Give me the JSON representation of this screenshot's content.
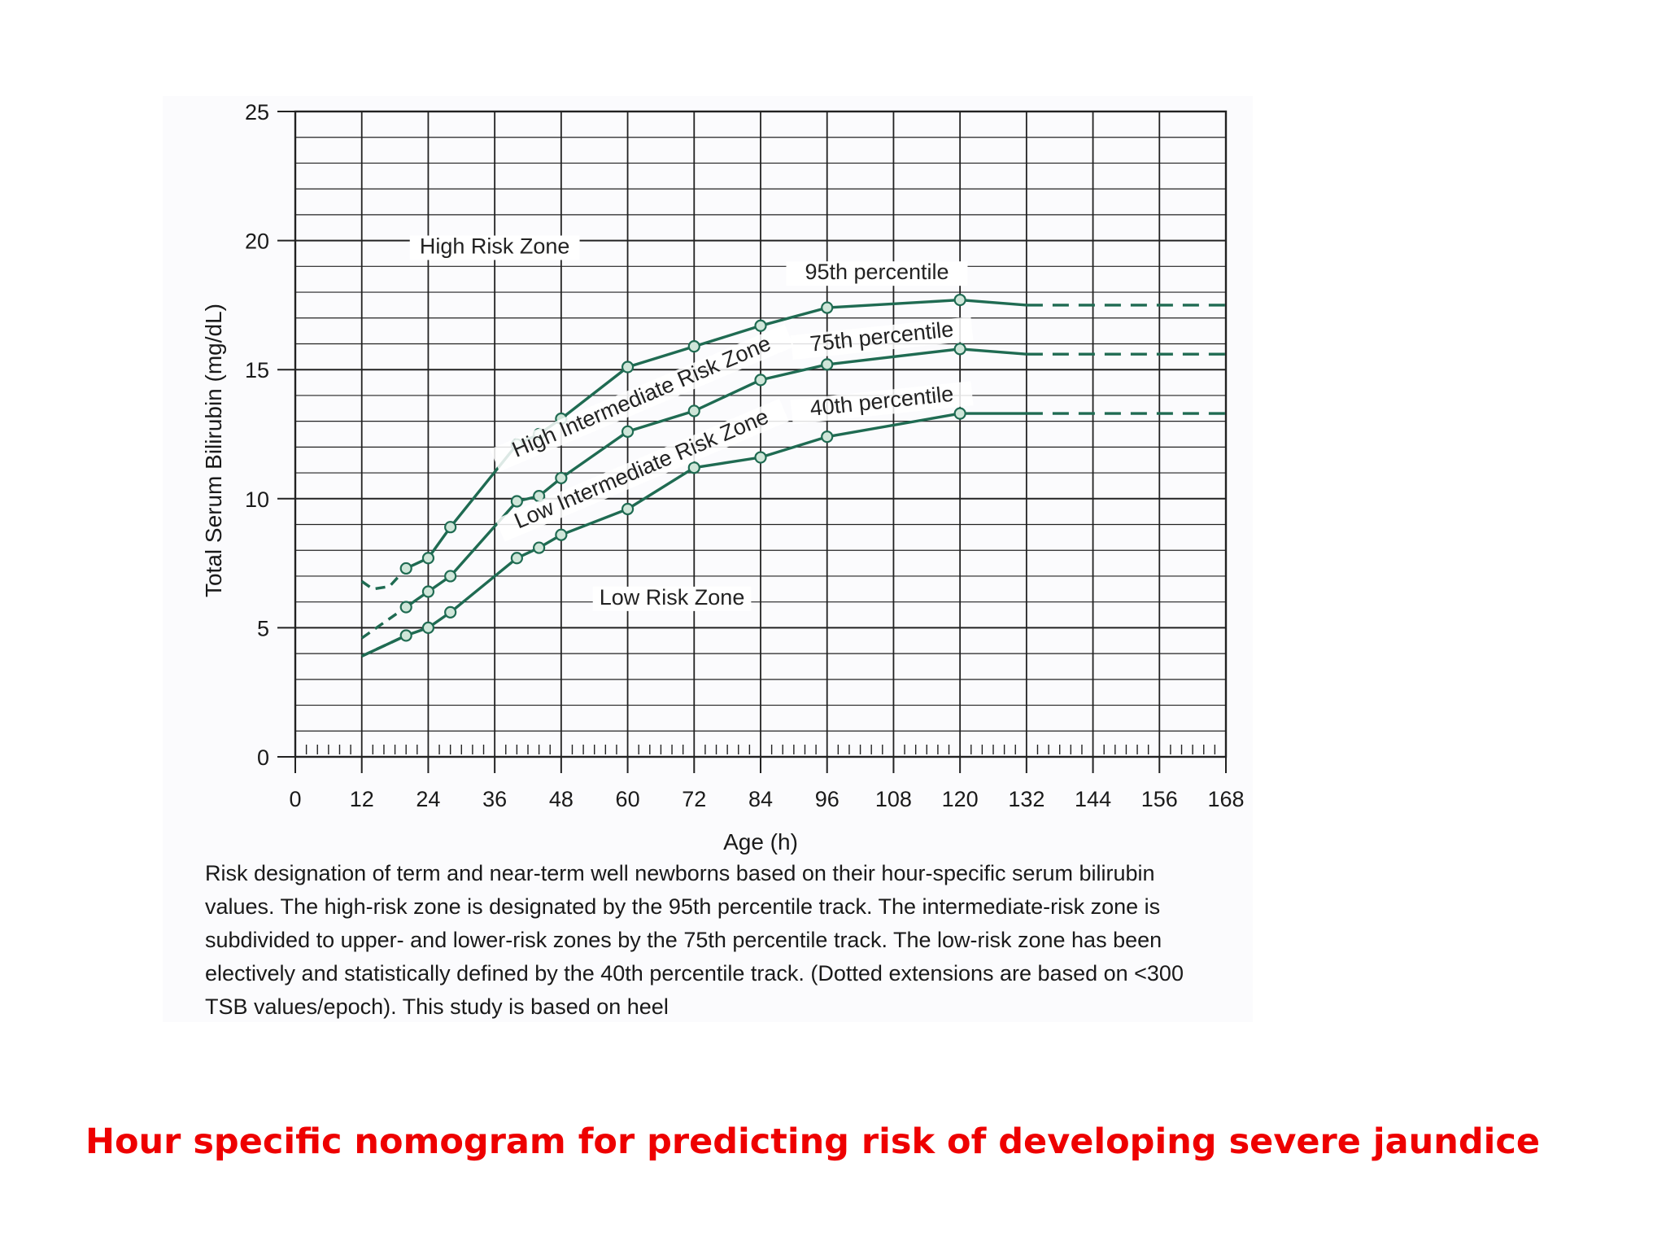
{
  "slide_title": "Hour specific nomogram for predicting risk of developing severe jaundice",
  "caption": "Risk designation of term and near-term well newborns based on their hour-specific serum bilirubin values. The high-risk zone is designated by the 95th percentile track. The intermediate-risk zone is subdivided to upper- and lower-risk zones by the 75th percentile track. The low-risk zone has been electively and statistically defined by the 40th percentile track. (Dotted extensions are based on <300 TSB values/epoch). This study is based on heel",
  "colors": {
    "line": "#1f6b52",
    "marker_fill": "#cfe6d9",
    "title": "#ee0000",
    "grid": "#222222"
  },
  "chart_data": {
    "type": "line",
    "title": "",
    "xlabel": "Age (h)",
    "ylabel": "Total Serum Bilirubin (mg/dL)",
    "xlim": [
      0,
      168
    ],
    "ylim": [
      0,
      25
    ],
    "x_ticks": [
      "0",
      "12",
      "24",
      "36",
      "48",
      "60",
      "72",
      "84",
      "96",
      "108",
      "120",
      "132",
      "144",
      "156",
      "168"
    ],
    "y_ticks": [
      "0",
      "5",
      "10",
      "15",
      "20",
      "25"
    ],
    "grid": true,
    "series": [
      {
        "name": "95th percentile",
        "solid": [
          [
            20,
            7.3
          ],
          [
            24,
            7.7
          ],
          [
            28,
            8.9
          ],
          [
            40,
            12.1
          ],
          [
            44,
            12.5
          ],
          [
            48,
            13.1
          ],
          [
            60,
            15.1
          ],
          [
            72,
            15.9
          ],
          [
            84,
            16.7
          ],
          [
            96,
            17.4
          ],
          [
            120,
            17.7
          ],
          [
            132,
            17.5
          ]
        ],
        "solid_markers": [
          [
            20,
            7.3
          ],
          [
            24,
            7.7
          ],
          [
            28,
            8.9
          ],
          [
            40,
            12.1
          ],
          [
            44,
            12.5
          ],
          [
            48,
            13.1
          ],
          [
            60,
            15.1
          ],
          [
            72,
            15.9
          ],
          [
            84,
            16.7
          ],
          [
            96,
            17.4
          ],
          [
            120,
            17.7
          ]
        ],
        "dashed_start": [
          [
            12,
            6.8
          ],
          [
            14,
            6.5
          ],
          [
            17,
            6.6
          ],
          [
            20,
            7.3
          ]
        ],
        "dashed_end": [
          [
            132,
            17.5
          ],
          [
            168,
            17.5
          ]
        ]
      },
      {
        "name": "75th percentile",
        "solid": [
          [
            20,
            5.8
          ],
          [
            24,
            6.4
          ],
          [
            28,
            7.0
          ],
          [
            40,
            9.9
          ],
          [
            44,
            10.1
          ],
          [
            48,
            10.8
          ],
          [
            60,
            12.6
          ],
          [
            72,
            13.4
          ],
          [
            84,
            14.6
          ],
          [
            96,
            15.2
          ],
          [
            120,
            15.8
          ],
          [
            132,
            15.6
          ]
        ],
        "solid_markers": [
          [
            20,
            5.8
          ],
          [
            24,
            6.4
          ],
          [
            28,
            7.0
          ],
          [
            40,
            9.9
          ],
          [
            44,
            10.1
          ],
          [
            48,
            10.8
          ],
          [
            60,
            12.6
          ],
          [
            72,
            13.4
          ],
          [
            84,
            14.6
          ],
          [
            96,
            15.2
          ],
          [
            120,
            15.8
          ]
        ],
        "dashed_start": [
          [
            12,
            4.6
          ],
          [
            20,
            5.8
          ]
        ],
        "dashed_end": [
          [
            132,
            15.6
          ],
          [
            168,
            15.6
          ]
        ]
      },
      {
        "name": "40th percentile",
        "solid": [
          [
            12,
            3.9
          ],
          [
            20,
            4.7
          ],
          [
            24,
            5.0
          ],
          [
            28,
            5.6
          ],
          [
            40,
            7.7
          ],
          [
            44,
            8.1
          ],
          [
            48,
            8.6
          ],
          [
            60,
            9.6
          ],
          [
            72,
            11.2
          ],
          [
            84,
            11.6
          ],
          [
            96,
            12.4
          ],
          [
            120,
            13.3
          ],
          [
            132,
            13.3
          ]
        ],
        "solid_markers": [
          [
            20,
            4.7
          ],
          [
            24,
            5.0
          ],
          [
            28,
            5.6
          ],
          [
            40,
            7.7
          ],
          [
            44,
            8.1
          ],
          [
            48,
            8.6
          ],
          [
            60,
            9.6
          ],
          [
            72,
            11.2
          ],
          [
            84,
            11.6
          ],
          [
            96,
            12.4
          ],
          [
            120,
            13.3
          ]
        ],
        "dashed_start": [
          [
            12,
            3.9
          ],
          [
            20,
            4.7
          ]
        ],
        "dashed_end": [
          [
            132,
            13.3
          ],
          [
            168,
            13.3
          ]
        ]
      }
    ],
    "annotations": [
      {
        "text": "High Risk Zone",
        "x": 36,
        "y": 19.5,
        "rotation": 0
      },
      {
        "text": "95th percentile",
        "x": 105,
        "y": 18.5,
        "rotation": 0
      },
      {
        "text": "75th percentile",
        "x": 106,
        "y": 16.0,
        "rotation": -6
      },
      {
        "text": "High Intermediate Risk Zone",
        "x": 63,
        "y": 13.7,
        "rotation": -23
      },
      {
        "text": "40th percentile",
        "x": 106,
        "y": 13.5,
        "rotation": -6
      },
      {
        "text": "Low Intermediate Risk Zone",
        "x": 63,
        "y": 10.9,
        "rotation": -23
      },
      {
        "text": "Low Risk Zone",
        "x": 68,
        "y": 5.9,
        "rotation": 0
      }
    ]
  }
}
